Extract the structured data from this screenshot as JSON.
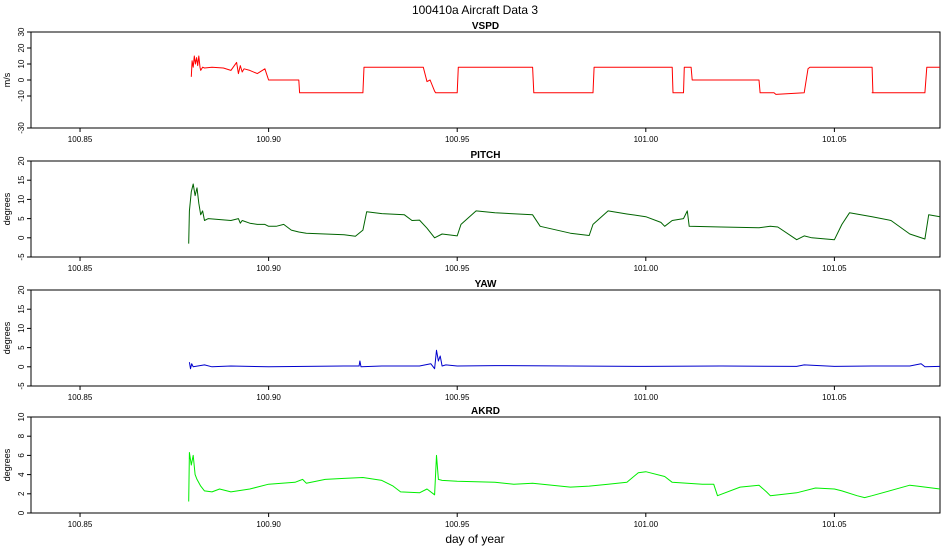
{
  "figure": {
    "title": "100410a   Aircraft Data 3",
    "xlabel": "day of year"
  },
  "chart_data": [
    {
      "type": "line",
      "title": "VSPD",
      "ylabel": "m/s",
      "color": "#ff0000",
      "xlim": [
        100.837,
        101.078
      ],
      "ylim": [
        -30,
        30
      ],
      "xticks": [
        100.85,
        100.9,
        100.95,
        101.0,
        101.05
      ],
      "xtick_labels": [
        "100.85",
        "100.90",
        "100.95",
        "101.00",
        "101.05"
      ],
      "yticks": [
        -30,
        -10,
        0,
        10,
        20,
        30
      ],
      "ytick_labels": [
        "-30",
        "-10",
        "0",
        "10",
        "20",
        "30"
      ],
      "series": [
        {
          "x": [
            100.8795,
            100.8797,
            100.88,
            100.8803,
            100.8806,
            100.8809,
            100.8812,
            100.8815,
            100.8818,
            100.882,
            100.8825,
            100.883,
            100.885,
            100.888,
            100.89,
            100.8915,
            100.892,
            100.8925,
            100.893,
            100.8935,
            100.895,
            100.897,
            100.899,
            100.9,
            100.908,
            100.9082,
            100.925,
            100.9253,
            100.941,
            100.942,
            100.9428,
            100.944,
            100.9443,
            100.95,
            100.9503,
            100.97,
            100.9703,
            100.986,
            100.9863,
            101.0,
            101.007,
            101.0072,
            101.01,
            101.0102,
            101.012,
            101.0123,
            101.03,
            101.0303,
            101.034,
            101.0345,
            101.042,
            101.043,
            101.0435,
            101.05,
            101.06,
            101.0602,
            101.06,
            101.0602,
            101.074,
            101.0745,
            101.078
          ],
          "y": [
            2,
            12,
            8,
            15,
            10,
            14,
            9,
            15,
            8,
            6,
            8,
            7.5,
            8,
            7.5,
            6,
            11,
            4,
            9,
            5,
            7,
            6,
            4,
            7,
            0,
            0,
            -8,
            -8,
            8,
            8,
            -1,
            0,
            -7,
            -8,
            -8,
            8,
            8,
            -8,
            -8,
            8,
            8,
            8,
            -8,
            -8,
            8,
            8,
            0,
            0,
            -8,
            -8,
            -9,
            -8,
            7,
            8,
            8,
            8,
            -8,
            -8,
            -8,
            -8,
            8,
            8
          ]
        }
      ]
    },
    {
      "type": "line",
      "title": "PITCH",
      "ylabel": "degrees",
      "color": "#006400",
      "xlim": [
        100.837,
        101.078
      ],
      "ylim": [
        -5,
        20
      ],
      "xticks": [
        100.85,
        100.9,
        100.95,
        101.0,
        101.05
      ],
      "xtick_labels": [
        "100.85",
        "100.90",
        "100.95",
        "101.00",
        "101.05"
      ],
      "yticks": [
        -5,
        0,
        5,
        10,
        15,
        20
      ],
      "ytick_labels": [
        "-5",
        "0",
        "5",
        "10",
        "15",
        "20"
      ],
      "series": [
        {
          "x": [
            100.8788,
            100.879,
            100.8795,
            100.88,
            100.8805,
            100.881,
            100.8815,
            100.882,
            100.8825,
            100.883,
            100.884,
            100.89,
            100.892,
            100.8925,
            100.893,
            100.895,
            100.897,
            100.899,
            100.9,
            100.902,
            100.904,
            100.906,
            100.908,
            100.91,
            100.92,
            100.923,
            100.925,
            100.926,
            100.93,
            100.936,
            100.938,
            100.94,
            100.942,
            100.944,
            100.946,
            100.95,
            100.951,
            100.955,
            100.96,
            100.97,
            100.972,
            100.98,
            100.985,
            100.986,
            100.99,
            100.995,
            101.0,
            101.004,
            101.005,
            101.007,
            101.01,
            101.011,
            101.0115,
            101.02,
            101.03,
            101.033,
            101.035,
            101.04,
            101.042,
            101.044,
            101.05,
            101.052,
            101.054,
            101.06,
            101.065,
            101.07,
            101.074,
            101.075,
            101.078
          ],
          "y": [
            -1.5,
            7,
            12,
            14,
            11,
            13,
            9,
            6,
            7,
            4.5,
            5,
            4.5,
            5,
            3.8,
            4.5,
            3.8,
            3.5,
            3.5,
            3,
            3,
            3.5,
            2,
            1.5,
            1.2,
            0.8,
            0.4,
            2,
            6.8,
            6.3,
            6,
            4.5,
            4.6,
            2.5,
            0,
            1,
            0.5,
            3.5,
            7,
            6.5,
            6,
            3,
            1.2,
            0.6,
            3.5,
            7,
            6.2,
            5.5,
            4,
            3,
            4.5,
            5,
            7,
            3,
            2.8,
            2.6,
            3,
            2.8,
            -0.5,
            0.5,
            0,
            -0.5,
            3.5,
            6.5,
            5.5,
            4.5,
            1,
            -0.3,
            6,
            5.5
          ]
        }
      ]
    },
    {
      "type": "line",
      "title": "YAW",
      "ylabel": "degrees",
      "color": "#0000cd",
      "xlim": [
        100.837,
        101.078
      ],
      "ylim": [
        -5,
        20
      ],
      "xticks": [
        100.85,
        100.9,
        100.95,
        101.0,
        101.05
      ],
      "xtick_labels": [
        "100.85",
        "100.90",
        "100.95",
        "101.00",
        "101.05"
      ],
      "yticks": [
        -5,
        0,
        5,
        10,
        15,
        20
      ],
      "ytick_labels": [
        "-5",
        "0",
        "5",
        "10",
        "15",
        "20"
      ],
      "series": [
        {
          "x": [
            100.879,
            100.8793,
            100.8796,
            100.88,
            100.883,
            100.885,
            100.89,
            100.9,
            100.91,
            100.92,
            100.924,
            100.9242,
            100.9245,
            100.93,
            100.94,
            100.943,
            100.944,
            100.9445,
            100.945,
            100.9455,
            100.946,
            100.947,
            100.95,
            100.96,
            100.98,
            101.0,
            101.02,
            101.04,
            101.042,
            101.05,
            101.06,
            101.07,
            101.073,
            101.074,
            101.078
          ],
          "y": [
            1.2,
            -0.5,
            0.8,
            0,
            0.5,
            0,
            0.2,
            0,
            0.1,
            0.2,
            0.2,
            1.5,
            0,
            0.2,
            0.2,
            0.8,
            -0.5,
            4.3,
            1.5,
            2.8,
            0.2,
            0.5,
            0.2,
            0.3,
            0.2,
            0.1,
            0.2,
            0.1,
            0.5,
            0.1,
            0.2,
            0.2,
            0.8,
            0,
            0.1
          ]
        }
      ]
    },
    {
      "type": "line",
      "title": "AKRD",
      "ylabel": "degrees",
      "color": "#00ee00",
      "xlim": [
        100.837,
        101.078
      ],
      "ylim": [
        0,
        10
      ],
      "xticks": [
        100.85,
        100.9,
        100.95,
        101.0,
        101.05
      ],
      "xtick_labels": [
        "100.85",
        "100.90",
        "100.95",
        "101.00",
        "101.05"
      ],
      "yticks": [
        0,
        2,
        4,
        6,
        8,
        10
      ],
      "ytick_labels": [
        "0",
        "2",
        "4",
        "6",
        "8",
        "10"
      ],
      "series": [
        {
          "x": [
            100.8788,
            100.879,
            100.8795,
            100.88,
            100.8805,
            100.881,
            100.882,
            100.883,
            100.885,
            100.887,
            100.89,
            100.895,
            100.9,
            100.907,
            100.909,
            100.91,
            100.915,
            100.92,
            100.925,
            100.93,
            100.933,
            100.935,
            100.94,
            100.942,
            100.944,
            100.9445,
            100.945,
            100.946,
            100.95,
            100.96,
            100.965,
            100.97,
            100.98,
            100.985,
            100.99,
            100.995,
            100.998,
            101.0,
            101.005,
            101.007,
            101.015,
            101.018,
            101.019,
            101.025,
            101.03,
            101.032,
            101.033,
            101.04,
            101.045,
            101.05,
            101.052,
            101.056,
            101.058,
            101.06,
            101.07,
            101.072,
            101.078
          ],
          "y": [
            1.2,
            6.3,
            5,
            6,
            4,
            3.5,
            2.8,
            2.3,
            2.2,
            2.5,
            2.2,
            2.5,
            3,
            3.2,
            3.5,
            3.1,
            3.5,
            3.6,
            3.7,
            3.4,
            2.8,
            2.2,
            2.1,
            2.5,
            1.9,
            6,
            3.5,
            3.4,
            3.3,
            3.2,
            3.0,
            3.1,
            2.7,
            2.8,
            3.0,
            3.2,
            4.2,
            4.3,
            3.8,
            3.2,
            3.0,
            3.0,
            1.8,
            2.7,
            2.9,
            2.2,
            1.8,
            2.1,
            2.6,
            2.5,
            2.3,
            1.8,
            1.6,
            1.8,
            2.9,
            2.8,
            2.5
          ]
        }
      ]
    }
  ]
}
